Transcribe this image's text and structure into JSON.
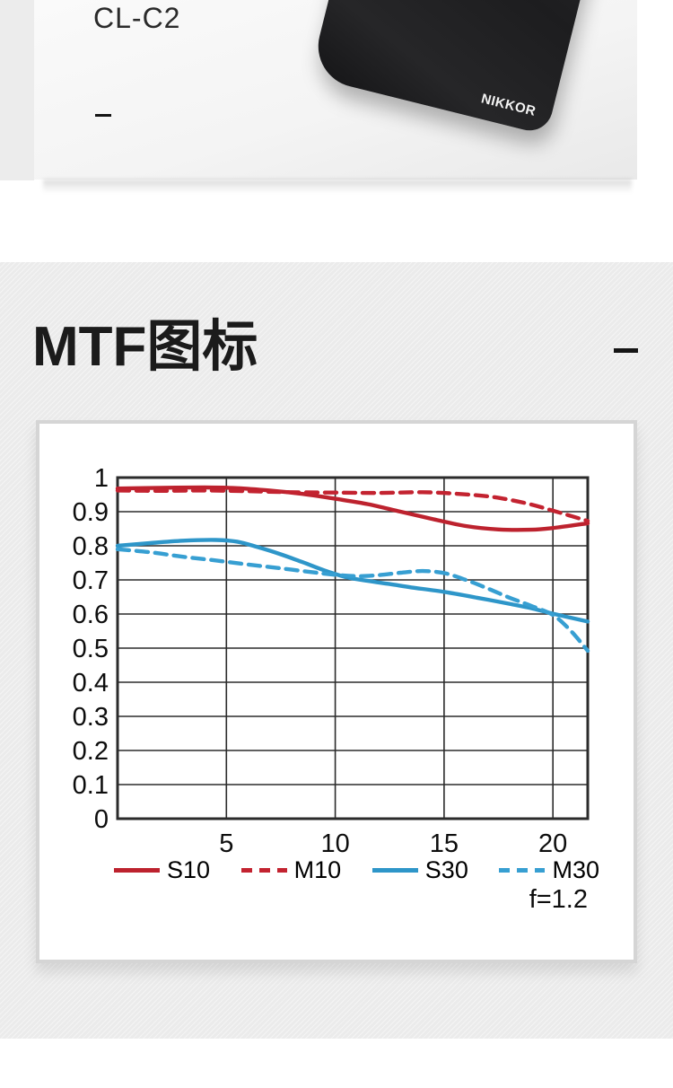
{
  "product": {
    "title": "CL-C2",
    "brand": "NIKKOR"
  },
  "mtf": {
    "heading": "MTF图标"
  },
  "chart_data": {
    "type": "line",
    "title": "MTF图标",
    "xlabel": "",
    "ylabel": "",
    "xlim": [
      0,
      21.6
    ],
    "ylim": [
      0,
      1
    ],
    "x_ticks": [
      5,
      10,
      15,
      20
    ],
    "y_ticks": [
      "0",
      "0.1",
      "0.2",
      "0.3",
      "0.4",
      "0.5",
      "0.6",
      "0.7",
      "0.8",
      "0.9",
      "1"
    ],
    "grid": true,
    "legend_position": "bottom",
    "annotation": "f=1.2",
    "grid_color": "#2b2b2b",
    "series": [
      {
        "name": "S10",
        "color": "#bd222e",
        "dash": false,
        "points": [
          [
            0,
            0.968
          ],
          [
            2,
            0.97
          ],
          [
            4,
            0.971
          ],
          [
            5.5,
            0.969
          ],
          [
            7,
            0.962
          ],
          [
            8.5,
            0.952
          ],
          [
            10,
            0.938
          ],
          [
            11.5,
            0.922
          ],
          [
            13,
            0.9
          ],
          [
            14.5,
            0.878
          ],
          [
            16,
            0.858
          ],
          [
            17.5,
            0.848
          ],
          [
            19,
            0.847
          ],
          [
            20,
            0.852
          ],
          [
            21.6,
            0.866
          ]
        ]
      },
      {
        "name": "M10",
        "color": "#c32330",
        "dash": true,
        "points": [
          [
            0,
            0.962
          ],
          [
            2,
            0.961
          ],
          [
            4,
            0.962
          ],
          [
            6,
            0.96
          ],
          [
            8,
            0.957
          ],
          [
            10,
            0.956
          ],
          [
            12,
            0.955
          ],
          [
            14,
            0.957
          ],
          [
            15.5,
            0.953
          ],
          [
            17,
            0.945
          ],
          [
            18,
            0.935
          ],
          [
            19,
            0.921
          ],
          [
            20,
            0.903
          ],
          [
            21.6,
            0.873
          ]
        ]
      },
      {
        "name": "S30",
        "color": "#2e96c9",
        "dash": false,
        "points": [
          [
            0,
            0.8
          ],
          [
            1.5,
            0.808
          ],
          [
            3,
            0.815
          ],
          [
            4.5,
            0.817
          ],
          [
            5.5,
            0.812
          ],
          [
            6.5,
            0.795
          ],
          [
            7.5,
            0.775
          ],
          [
            8.5,
            0.752
          ],
          [
            9.5,
            0.728
          ],
          [
            10.5,
            0.708
          ],
          [
            11.5,
            0.697
          ],
          [
            12.5,
            0.688
          ],
          [
            13.5,
            0.678
          ],
          [
            15,
            0.665
          ],
          [
            16.5,
            0.648
          ],
          [
            18,
            0.63
          ],
          [
            19,
            0.617
          ],
          [
            20,
            0.601
          ],
          [
            21.6,
            0.578
          ]
        ]
      },
      {
        "name": "M30",
        "color": "#379fd2",
        "dash": true,
        "points": [
          [
            0,
            0.79
          ],
          [
            1.5,
            0.781
          ],
          [
            3,
            0.768
          ],
          [
            4.5,
            0.757
          ],
          [
            6,
            0.745
          ],
          [
            7.5,
            0.734
          ],
          [
            9,
            0.722
          ],
          [
            10,
            0.715
          ],
          [
            11,
            0.711
          ],
          [
            12,
            0.714
          ],
          [
            13,
            0.721
          ],
          [
            14,
            0.726
          ],
          [
            15,
            0.72
          ],
          [
            16,
            0.7
          ],
          [
            17,
            0.675
          ],
          [
            18,
            0.648
          ],
          [
            19,
            0.624
          ],
          [
            20,
            0.597
          ],
          [
            20.8,
            0.552
          ],
          [
            21.6,
            0.492
          ]
        ]
      }
    ]
  }
}
